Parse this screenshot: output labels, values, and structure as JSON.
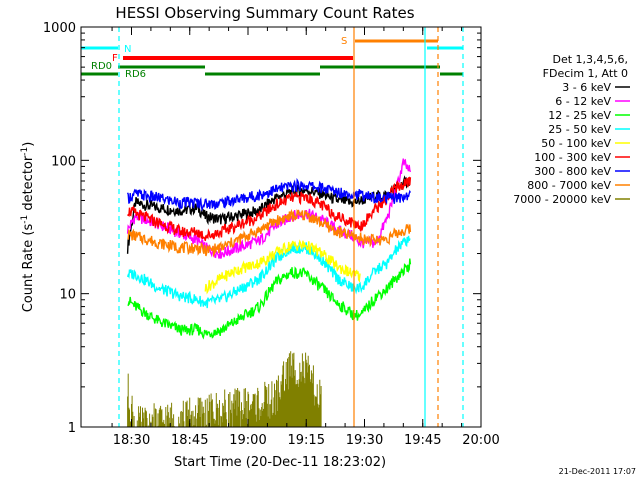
{
  "chart_data": {
    "type": "line",
    "title": "HESSI Observing Summary Count Rates",
    "xlabel": "Start Time (20-Dec-11 18:23:02)",
    "ylabel_main": "Count Rate (s",
    "ylabel_sup1": "-1",
    "ylabel_mid": " detector",
    "ylabel_sup2": "-1",
    "ylabel_end": ")",
    "y_scale": "log",
    "ylim": [
      1,
      1000
    ],
    "xlim_min": [
      -6,
      97
    ],
    "y_ticks": [
      {
        "v": 1,
        "label": "1"
      },
      {
        "v": 10,
        "label": "10"
      },
      {
        "v": 100,
        "label": "100"
      },
      {
        "v": 1000,
        "label": "1000"
      }
    ],
    "x_ticks": [
      {
        "t": 7,
        "label": "18:30"
      },
      {
        "t": 22,
        "label": "18:45"
      },
      {
        "t": 37,
        "label": "19:00"
      },
      {
        "t": 52,
        "label": "19:15"
      },
      {
        "t": 67,
        "label": "19:30"
      },
      {
        "t": 82,
        "label": "19:45"
      },
      {
        "t": 97,
        "label": "20:00"
      }
    ],
    "legend": {
      "header1": "Det 1,3,4,5,6,",
      "header2": "FDecim 1, Att 0",
      "placement": "right"
    },
    "series": [
      {
        "name": "3 - 6 keV",
        "color": "#000000",
        "values": [
          [
            6,
            22
          ],
          [
            8,
            48
          ],
          [
            14,
            44
          ],
          [
            20,
            42
          ],
          [
            24,
            44
          ],
          [
            26,
            38
          ],
          [
            30,
            36
          ],
          [
            40,
            42
          ],
          [
            44,
            52
          ],
          [
            48,
            58
          ],
          [
            52,
            60
          ],
          [
            56,
            56
          ],
          [
            60,
            50
          ],
          [
            64,
            48
          ],
          [
            66,
            50
          ],
          [
            70,
            54
          ],
          [
            73,
            55
          ],
          [
            75,
            62
          ],
          [
            79,
            72
          ]
        ]
      },
      {
        "name": "6 - 12 keV",
        "color": "#ff00ff",
        "values": [
          [
            6,
            30
          ],
          [
            8,
            38
          ],
          [
            14,
            33
          ],
          [
            20,
            28
          ],
          [
            24,
            25
          ],
          [
            26,
            22
          ],
          [
            30,
            20
          ],
          [
            40,
            25
          ],
          [
            44,
            32
          ],
          [
            48,
            38
          ],
          [
            52,
            40
          ],
          [
            56,
            36
          ],
          [
            60,
            30
          ],
          [
            64,
            27
          ],
          [
            66,
            24
          ],
          [
            70,
            24
          ],
          [
            73,
            38
          ],
          [
            75,
            58
          ],
          [
            77,
            96
          ],
          [
            79,
            80
          ]
        ]
      },
      {
        "name": "12 - 25 keV",
        "color": "#00ff00",
        "values": [
          [
            6,
            9
          ],
          [
            8,
            8
          ],
          [
            14,
            6.2
          ],
          [
            20,
            5.3
          ],
          [
            24,
            5.4
          ],
          [
            26,
            5
          ],
          [
            30,
            5.3
          ],
          [
            40,
            8
          ],
          [
            44,
            12
          ],
          [
            48,
            14.5
          ],
          [
            52,
            14
          ],
          [
            56,
            11
          ],
          [
            60,
            8.5
          ],
          [
            64,
            7
          ],
          [
            66,
            6.8
          ],
          [
            70,
            9.5
          ],
          [
            73,
            11
          ],
          [
            75,
            13
          ],
          [
            79,
            17
          ]
        ]
      },
      {
        "name": "25 - 50 keV",
        "color": "#00ffff",
        "values": [
          [
            6,
            14
          ],
          [
            8,
            14
          ],
          [
            14,
            11
          ],
          [
            20,
            9.5
          ],
          [
            24,
            9
          ],
          [
            26,
            8.5
          ],
          [
            30,
            9
          ],
          [
            40,
            13
          ],
          [
            44,
            18
          ],
          [
            48,
            22
          ],
          [
            52,
            22
          ],
          [
            56,
            18
          ],
          [
            60,
            13
          ],
          [
            64,
            11
          ],
          [
            66,
            11
          ],
          [
            70,
            15
          ],
          [
            73,
            17
          ],
          [
            75,
            21
          ],
          [
            79,
            27
          ]
        ]
      },
      {
        "name": "50 - 100 keV",
        "color": "#ffff00",
        "values": [
          [
            26,
            11
          ],
          [
            30,
            13
          ],
          [
            34,
            15
          ],
          [
            40,
            17
          ],
          [
            44,
            20
          ],
          [
            48,
            23
          ],
          [
            52,
            23
          ],
          [
            56,
            20
          ],
          [
            60,
            16
          ],
          [
            64,
            14
          ],
          [
            66,
            13.5
          ]
        ]
      },
      {
        "name": "100 - 300 keV",
        "color": "#ff0000",
        "values": [
          [
            6,
            42
          ],
          [
            8,
            40
          ],
          [
            14,
            34
          ],
          [
            20,
            29
          ],
          [
            24,
            29
          ],
          [
            26,
            27
          ],
          [
            30,
            29
          ],
          [
            40,
            38
          ],
          [
            44,
            46
          ],
          [
            48,
            52
          ],
          [
            52,
            53
          ],
          [
            56,
            46
          ],
          [
            60,
            38
          ],
          [
            64,
            34
          ],
          [
            66,
            32
          ],
          [
            70,
            44
          ],
          [
            73,
            52
          ],
          [
            75,
            62
          ],
          [
            79,
            70
          ]
        ]
      },
      {
        "name": "300 - 800 keV",
        "color": "#0000ff",
        "values": [
          [
            6,
            52
          ],
          [
            8,
            56
          ],
          [
            14,
            52
          ],
          [
            20,
            48
          ],
          [
            24,
            48
          ],
          [
            26,
            47
          ],
          [
            30,
            48
          ],
          [
            40,
            55
          ],
          [
            44,
            60
          ],
          [
            48,
            64
          ],
          [
            52,
            65
          ],
          [
            56,
            62
          ],
          [
            60,
            58
          ],
          [
            64,
            56
          ],
          [
            66,
            55
          ],
          [
            70,
            52
          ],
          [
            73,
            52
          ],
          [
            75,
            52
          ],
          [
            79,
            55
          ]
        ]
      },
      {
        "name": "800 - 7000 keV",
        "color": "#ff8000",
        "values": [
          [
            6,
            28
          ],
          [
            8,
            27
          ],
          [
            14,
            24
          ],
          [
            20,
            22
          ],
          [
            24,
            22
          ],
          [
            26,
            21
          ],
          [
            30,
            22
          ],
          [
            40,
            30
          ],
          [
            44,
            35
          ],
          [
            48,
            38
          ],
          [
            52,
            39
          ],
          [
            56,
            34
          ],
          [
            60,
            29
          ],
          [
            64,
            27
          ],
          [
            66,
            26
          ],
          [
            70,
            25
          ],
          [
            73,
            26
          ],
          [
            75,
            28
          ],
          [
            79,
            31
          ]
        ]
      },
      {
        "name": "7000 - 20000 keV",
        "color": "#808000",
        "values": [
          [
            6,
            1.9
          ],
          [
            7,
            1.4
          ],
          [
            8,
            1
          ],
          [
            44,
            1.6
          ],
          [
            46,
            2.3
          ],
          [
            48,
            2.8
          ],
          [
            50,
            2.8
          ],
          [
            52,
            2.6
          ],
          [
            54,
            2.0
          ],
          [
            56,
            1.5
          ]
        ]
      }
    ],
    "flags": [
      {
        "label": "N",
        "color": "#00ffff"
      },
      {
        "label": "F",
        "color": "#ff0000"
      },
      {
        "label": "S",
        "color": "#ff8000"
      },
      {
        "label": "RD0",
        "color": "#008000"
      },
      {
        "label": "RD6",
        "color": "#008000"
      }
    ],
    "timestamp": "21-Dec-2011 17:07"
  }
}
